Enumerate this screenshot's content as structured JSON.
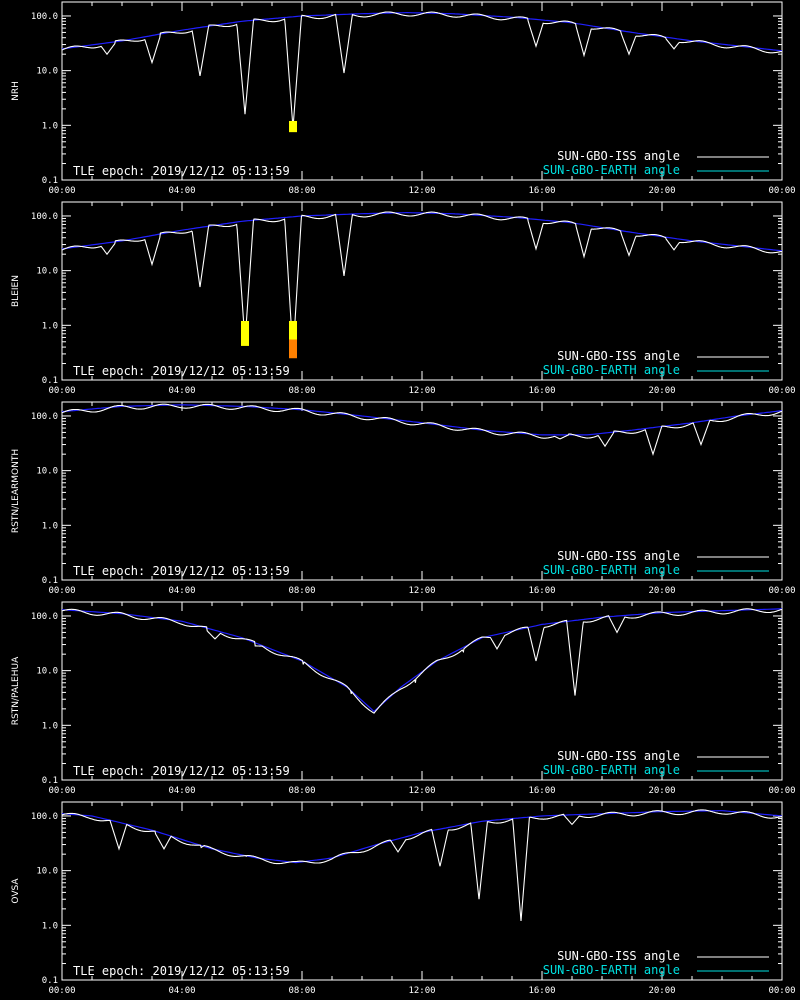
{
  "chart_data": {
    "type": "line",
    "epoch_text": "TLE epoch: 2019/12/12 05:13:59",
    "legend": {
      "iss": "SUN-GBO-ISS angle",
      "earth": "SUN-GBO-EARTH angle"
    },
    "colors": {
      "background": "#000000",
      "axis": "#ffffff",
      "iss": "#ffffff",
      "iss_faded": "#808080",
      "earth_curve": "#2020ff",
      "earth_legend": "#00e0e0",
      "flag_yellow": "#ffff00",
      "flag_orange": "#ff8000"
    },
    "x_ticks": [
      "00:00",
      "04:00",
      "08:00",
      "12:00",
      "16:00",
      "20:00",
      "00:00"
    ],
    "x_range_hours": [
      0,
      24
    ],
    "y_ticks": [
      "0.1",
      "1.0",
      "10.0",
      "100.0"
    ],
    "y_range": [
      0.1,
      180
    ],
    "y_scale": "log",
    "panels": [
      {
        "station": "NRH",
        "earth_curve": [
          [
            0,
            25
          ],
          [
            2,
            35
          ],
          [
            4,
            55
          ],
          [
            6,
            80
          ],
          [
            8,
            100
          ],
          [
            10,
            110
          ],
          [
            11.5,
            115
          ],
          [
            13,
            110
          ],
          [
            15,
            95
          ],
          [
            17,
            75
          ],
          [
            19,
            50
          ],
          [
            21,
            35
          ],
          [
            24,
            23
          ]
        ],
        "iss_dips": [
          [
            1.5,
            20
          ],
          [
            3,
            14
          ],
          [
            4.6,
            8
          ],
          [
            6.1,
            1.6
          ],
          [
            7.7,
            0.9
          ],
          [
            9.4,
            9
          ],
          [
            15.8,
            28
          ],
          [
            17.4,
            19
          ],
          [
            18.9,
            20
          ],
          [
            20.4,
            25
          ],
          [
            22,
            27
          ],
          [
            23.5,
            30
          ]
        ],
        "flags": [
          {
            "t": 7.7,
            "from": 0.75,
            "to": 1.2,
            "color": "yellow"
          }
        ]
      },
      {
        "station": "BLEIEN",
        "earth_curve": [
          [
            0,
            25
          ],
          [
            2,
            35
          ],
          [
            4,
            55
          ],
          [
            6,
            80
          ],
          [
            8,
            100
          ],
          [
            10,
            110
          ],
          [
            11.5,
            115
          ],
          [
            13,
            110
          ],
          [
            15,
            95
          ],
          [
            17,
            75
          ],
          [
            19,
            50
          ],
          [
            21,
            35
          ],
          [
            24,
            23
          ]
        ],
        "iss_dips": [
          [
            1.5,
            20
          ],
          [
            3,
            13
          ],
          [
            4.6,
            5
          ],
          [
            6.1,
            0.5
          ],
          [
            7.7,
            0.3
          ],
          [
            9.4,
            8
          ],
          [
            15.8,
            25
          ],
          [
            17.4,
            18
          ],
          [
            18.9,
            19
          ],
          [
            20.4,
            24
          ],
          [
            22,
            27
          ],
          [
            23.5,
            30
          ]
        ],
        "flags": [
          {
            "t": 6.1,
            "from": 0.42,
            "to": 1.2,
            "color": "yellow"
          },
          {
            "t": 7.7,
            "from": 0.55,
            "to": 1.2,
            "color": "yellow"
          },
          {
            "t": 7.7,
            "from": 0.25,
            "to": 0.55,
            "color": "orange"
          }
        ]
      },
      {
        "station": "RSTN/LEARMONTH",
        "earth_curve": [
          [
            0,
            120
          ],
          [
            2,
            150
          ],
          [
            4,
            160
          ],
          [
            6,
            150
          ],
          [
            8,
            130
          ],
          [
            10,
            100
          ],
          [
            12,
            75
          ],
          [
            14,
            55
          ],
          [
            16,
            45
          ],
          [
            17.5,
            45
          ],
          [
            19,
            55
          ],
          [
            21,
            75
          ],
          [
            22.5,
            100
          ],
          [
            24,
            125
          ]
        ],
        "iss_dips": [
          [
            14.7,
            50
          ],
          [
            16.6,
            38
          ],
          [
            18.1,
            28
          ],
          [
            19.7,
            20
          ],
          [
            21.3,
            30
          ]
        ],
        "flags": []
      },
      {
        "station": "RSTN/PALEHUA",
        "earth_curve": [
          [
            0,
            130
          ],
          [
            2,
            110
          ],
          [
            4,
            80
          ],
          [
            6,
            40
          ],
          [
            8,
            15
          ],
          [
            9.5,
            5
          ],
          [
            10.4,
            1.8
          ],
          [
            11.3,
            5
          ],
          [
            12.5,
            15
          ],
          [
            14,
            40
          ],
          [
            16,
            70
          ],
          [
            18,
            95
          ],
          [
            20,
            115
          ],
          [
            22,
            125
          ],
          [
            24,
            135
          ]
        ],
        "iss_dips": [
          [
            5.1,
            38
          ],
          [
            6.7,
            28
          ],
          [
            8.3,
            35
          ],
          [
            9.9,
            35
          ],
          [
            11.5,
            35
          ],
          [
            13.1,
            36
          ],
          [
            14.5,
            25
          ],
          [
            15.8,
            15
          ],
          [
            17.1,
            3.5
          ],
          [
            18.5,
            50
          ]
        ],
        "flags": []
      },
      {
        "station": "OVSA",
        "earth_curve": [
          [
            0,
            110
          ],
          [
            1,
            100
          ],
          [
            3,
            55
          ],
          [
            5,
            25
          ],
          [
            6.5,
            17
          ],
          [
            7.8,
            14
          ],
          [
            9,
            17
          ],
          [
            10.5,
            30
          ],
          [
            12,
            50
          ],
          [
            14,
            80
          ],
          [
            16,
            100
          ],
          [
            18,
            110
          ],
          [
            20,
            120
          ],
          [
            22,
            125
          ],
          [
            24,
            100
          ]
        ],
        "iss_dips": [
          [
            1.9,
            25
          ],
          [
            3.4,
            25
          ],
          [
            4.9,
            33
          ],
          [
            6.4,
            35
          ],
          [
            8,
            35
          ],
          [
            9.6,
            28
          ],
          [
            11.2,
            22
          ],
          [
            12.6,
            12
          ],
          [
            13.9,
            3
          ],
          [
            15.3,
            1.2
          ],
          [
            17,
            70
          ]
        ],
        "flags": []
      }
    ]
  }
}
